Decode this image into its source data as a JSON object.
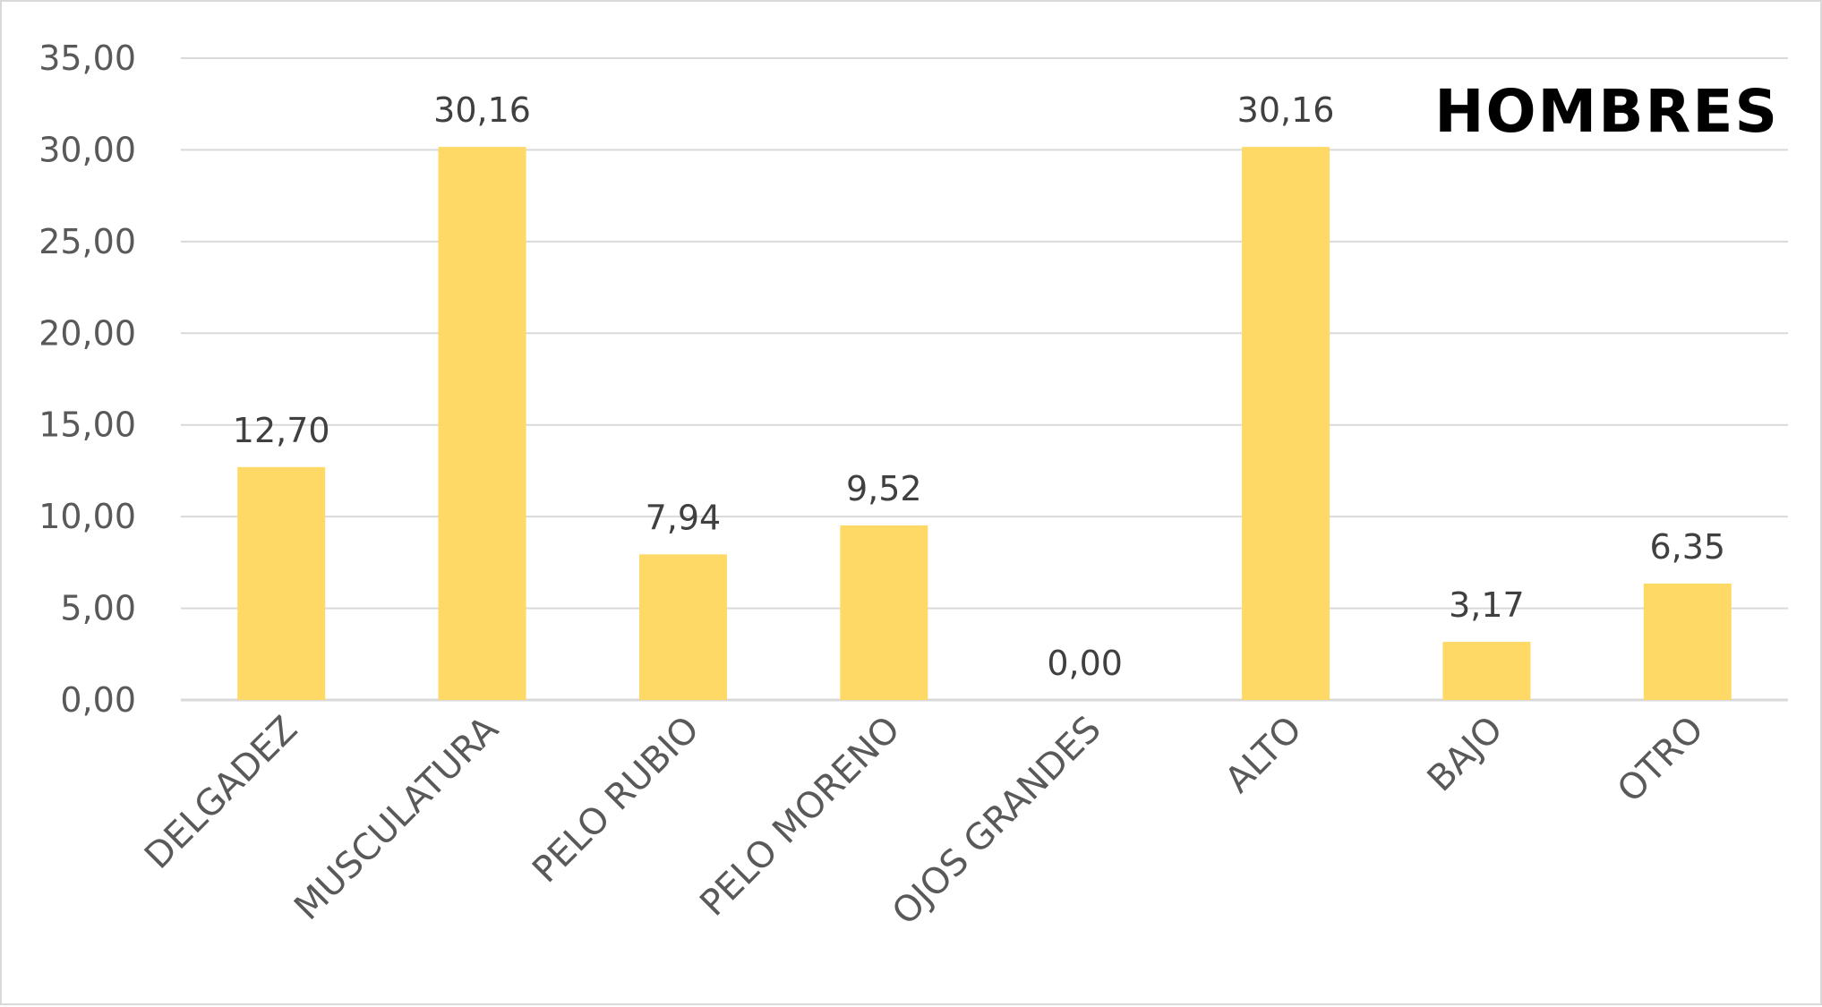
{
  "chart_data": {
    "type": "bar",
    "title": "HOMBRES",
    "categories": [
      "DELGADEZ",
      "MUSCULATURA",
      "PELO RUBIO",
      "PELO MORENO",
      "OJOS GRANDES",
      "ALTO",
      "BAJO",
      "OTRO"
    ],
    "values": [
      12.7,
      30.16,
      7.94,
      9.52,
      0.0,
      30.16,
      3.17,
      6.35
    ],
    "data_labels": [
      "12,70",
      "30,16",
      "7,94",
      "9,52",
      "0,00",
      "30,16",
      "3,17",
      "6,35"
    ],
    "ylim": [
      0,
      35
    ],
    "yticks": [
      0,
      5,
      10,
      15,
      20,
      25,
      30,
      35
    ],
    "ytick_labels": [
      "0,00",
      "5,00",
      "10,00",
      "15,00",
      "20,00",
      "25,00",
      "30,00",
      "35,00"
    ],
    "grid": true,
    "bar_color": "#FFD966",
    "grid_color": "#d9d9d9"
  }
}
